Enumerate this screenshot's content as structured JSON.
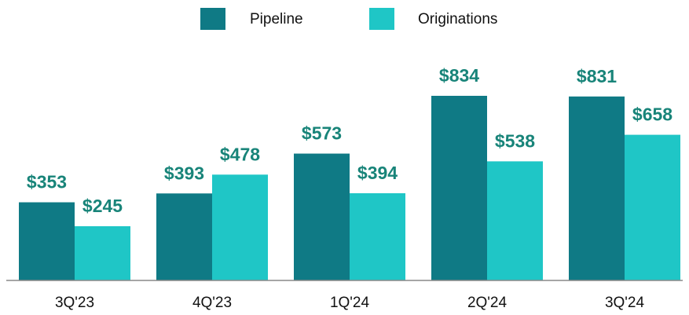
{
  "chart_data": {
    "type": "bar",
    "categories": [
      "3Q'23",
      "4Q'23",
      "1Q'24",
      "2Q'24",
      "3Q'24"
    ],
    "series": [
      {
        "name": "Pipeline",
        "color": "#0f7a85",
        "values": [
          353,
          393,
          573,
          834,
          831
        ],
        "value_labels": [
          "$353",
          "$393",
          "$573",
          "$834",
          "$831"
        ]
      },
      {
        "name": "Originations",
        "color": "#1fc6c6",
        "values": [
          245,
          478,
          394,
          538,
          658
        ],
        "value_labels": [
          "$245",
          "$478",
          "$394",
          "$538",
          "$658"
        ]
      }
    ],
    "legend": "top",
    "label_color": "#188479"
  }
}
